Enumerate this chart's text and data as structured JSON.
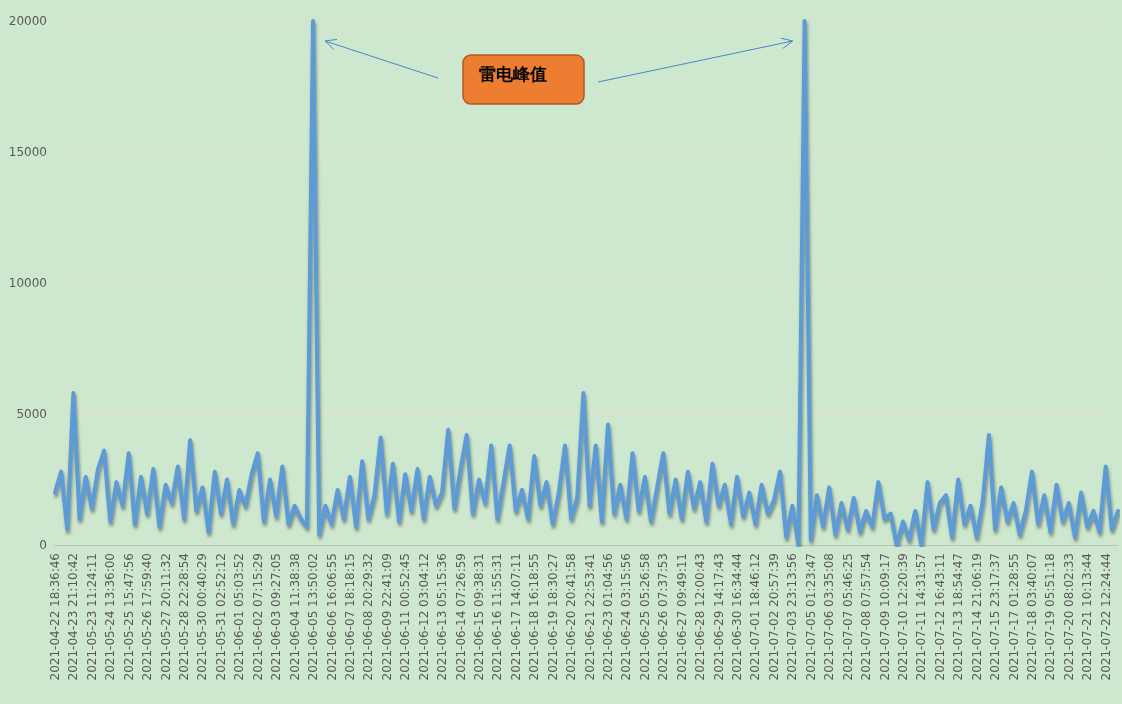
{
  "chart_data": {
    "type": "line",
    "categories": [
      "2021-04-22 18:36:46",
      null,
      null,
      "2021-04-23 21:10:42",
      null,
      null,
      "2021-05-23 11:24:11",
      null,
      null,
      "2021-05-24 13:36:00",
      null,
      null,
      "2021-05-25 15:47:56",
      null,
      null,
      "2021-05-26 17:59:40",
      null,
      null,
      "2021-05-27 20:11:32",
      null,
      null,
      "2021-05-28 22:28:54",
      null,
      null,
      "2021-05-30 00:40:29",
      null,
      null,
      "2021-05-31 02:52:12",
      null,
      null,
      "2021-06-01 05:03:52",
      null,
      null,
      "2021-06-02 07:15:29",
      null,
      null,
      "2021-06-03 09:27:05",
      null,
      null,
      "2021-06-04 11:38:38",
      null,
      null,
      "2021-06-05 13:50:02",
      null,
      null,
      "2021-06-06 16:06:55",
      null,
      null,
      "2021-06-07 18:18:15",
      null,
      null,
      "2021-06-08 20:29:32",
      null,
      null,
      "2021-06-09 22:41:09",
      null,
      null,
      "2021-06-11 00:52:45",
      null,
      null,
      "2021-06-12 03:04:12",
      null,
      null,
      "2021-06-13 05:15:36",
      null,
      null,
      "2021-06-14 07:26:59",
      null,
      null,
      "2021-06-15 09:38:31",
      null,
      null,
      "2021-06-16 11:55:31",
      null,
      null,
      "2021-06-17 14:07:11",
      null,
      null,
      "2021-06-18 16:18:55",
      null,
      null,
      "2021-06-19 18:30:27",
      null,
      null,
      "2021-06-20 20:41:58",
      null,
      null,
      "2021-06-21 22:53:41",
      null,
      null,
      "2021-06-23 01:04:56",
      null,
      null,
      "2021-06-24 03:15:56",
      null,
      null,
      "2021-06-25 05:26:58",
      null,
      null,
      "2021-06-26 07:37:53",
      null,
      null,
      "2021-06-27 09:49:11",
      null,
      null,
      "2021-06-28 12:00:43",
      null,
      null,
      "2021-06-29 14:17:43",
      null,
      null,
      "2021-06-30 16:34:44",
      null,
      null,
      "2021-07-01 18:46:12",
      null,
      null,
      "2021-07-02 20:57:39",
      null,
      null,
      "2021-07-03 23:13:56",
      null,
      null,
      "2021-07-05 01:23:47",
      null,
      null,
      "2021-07-06 03:35:08",
      null,
      null,
      "2021-07-07 05:46:25",
      null,
      null,
      "2021-07-08 07:57:54",
      null,
      null,
      "2021-07-09 10:09:17",
      null,
      null,
      "2021-07-10 12:20:39",
      null,
      null,
      "2021-07-11 14:31:57",
      null,
      null,
      "2021-07-12 16:43:11",
      null,
      null,
      "2021-07-13 18:54:47",
      null,
      null,
      "2021-07-14 21:06:19",
      null,
      null,
      "2021-07-15 23:17:37",
      null,
      null,
      "2021-07-17 01:28:55",
      null,
      null,
      "2021-07-18 03:40:07",
      null,
      null,
      "2021-07-19 05:51:18",
      null,
      null,
      "2021-07-20 08:02:33",
      null,
      null,
      "2021-07-21 10:13:44",
      null,
      null,
      "2021-07-22 12:24:44",
      null,
      null
    ],
    "series": [
      {
        "color": "#5b9bd5",
        "values": [
          2000,
          2800,
          600,
          5800,
          1000,
          2600,
          1400,
          2900,
          3600,
          900,
          2400,
          1500,
          3500,
          800,
          2600,
          1200,
          2900,
          700,
          2300,
          1600,
          3000,
          1000,
          4000,
          1300,
          2200,
          500,
          2800,
          1200,
          2500,
          800,
          2100,
          1500,
          2700,
          3500,
          900,
          2500,
          1100,
          3000,
          800,
          1500,
          1000,
          700,
          20000,
          400,
          1500,
          800,
          2100,
          1000,
          2600,
          700,
          3200,
          1000,
          1900,
          4100,
          1200,
          3100,
          900,
          2700,
          1300,
          2900,
          1000,
          2600,
          1500,
          2000,
          4400,
          1400,
          2900,
          4200,
          1200,
          2500,
          1600,
          3800,
          1000,
          2400,
          3800,
          1300,
          2100,
          1000,
          3400,
          1500,
          2400,
          800,
          2000,
          3800,
          1000,
          1800,
          5800,
          1500,
          3800,
          900,
          4600,
          1200,
          2300,
          1000,
          3500,
          1300,
          2600,
          900,
          2200,
          3500,
          1200,
          2500,
          1000,
          2800,
          1400,
          2400,
          900,
          3100,
          1500,
          2300,
          800,
          2600,
          1100,
          2000,
          800,
          2300,
          1200,
          1700,
          2800,
          300,
          1500,
          0,
          20000,
          200,
          1900,
          700,
          2200,
          400,
          1600,
          600,
          1800,
          500,
          1300,
          700,
          2400,
          1000,
          1200,
          0,
          900,
          200,
          1300,
          0,
          2400,
          600,
          1600,
          1900,
          300,
          2500,
          800,
          1500,
          300,
          1700,
          4200,
          600,
          2200,
          900,
          1600,
          400,
          1300,
          2800,
          800,
          1900,
          500,
          2300,
          900,
          1600,
          300,
          2000,
          700,
          1300,
          500,
          3000,
          600,
          1300
        ]
      }
    ],
    "ylim": [
      0,
      20000
    ],
    "yticks": [
      0,
      5000,
      10000,
      15000,
      20000
    ],
    "grid": "y",
    "marker": "none",
    "line_style": "solid",
    "annotations": [
      "雷电峰值"
    ]
  }
}
